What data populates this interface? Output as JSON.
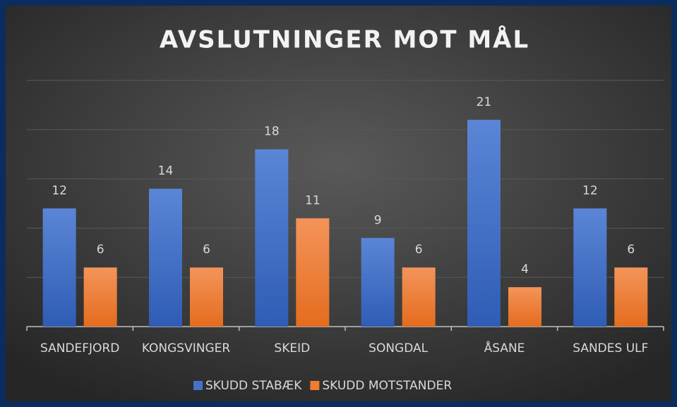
{
  "chart_data": {
    "type": "bar",
    "title": "AVSLUTNINGER MOT MÅL",
    "categories": [
      "SANDEFJORD",
      "KONGSVINGER",
      "SKEID",
      "SONGDAL",
      "ÅSANE",
      "SANDES ULF"
    ],
    "series": [
      {
        "name": "SKUDD STABÆK",
        "color": "#4472c4",
        "values": [
          12,
          14,
          18,
          9,
          21,
          12
        ]
      },
      {
        "name": "SKUDD MOTSTANDER",
        "color": "#ed7d31",
        "values": [
          6,
          6,
          11,
          6,
          4,
          6
        ]
      }
    ],
    "ylim": [
      0,
      25
    ],
    "yticks": [
      0,
      5,
      10,
      15,
      20,
      25
    ],
    "grid": true,
    "legend": "bottom"
  }
}
